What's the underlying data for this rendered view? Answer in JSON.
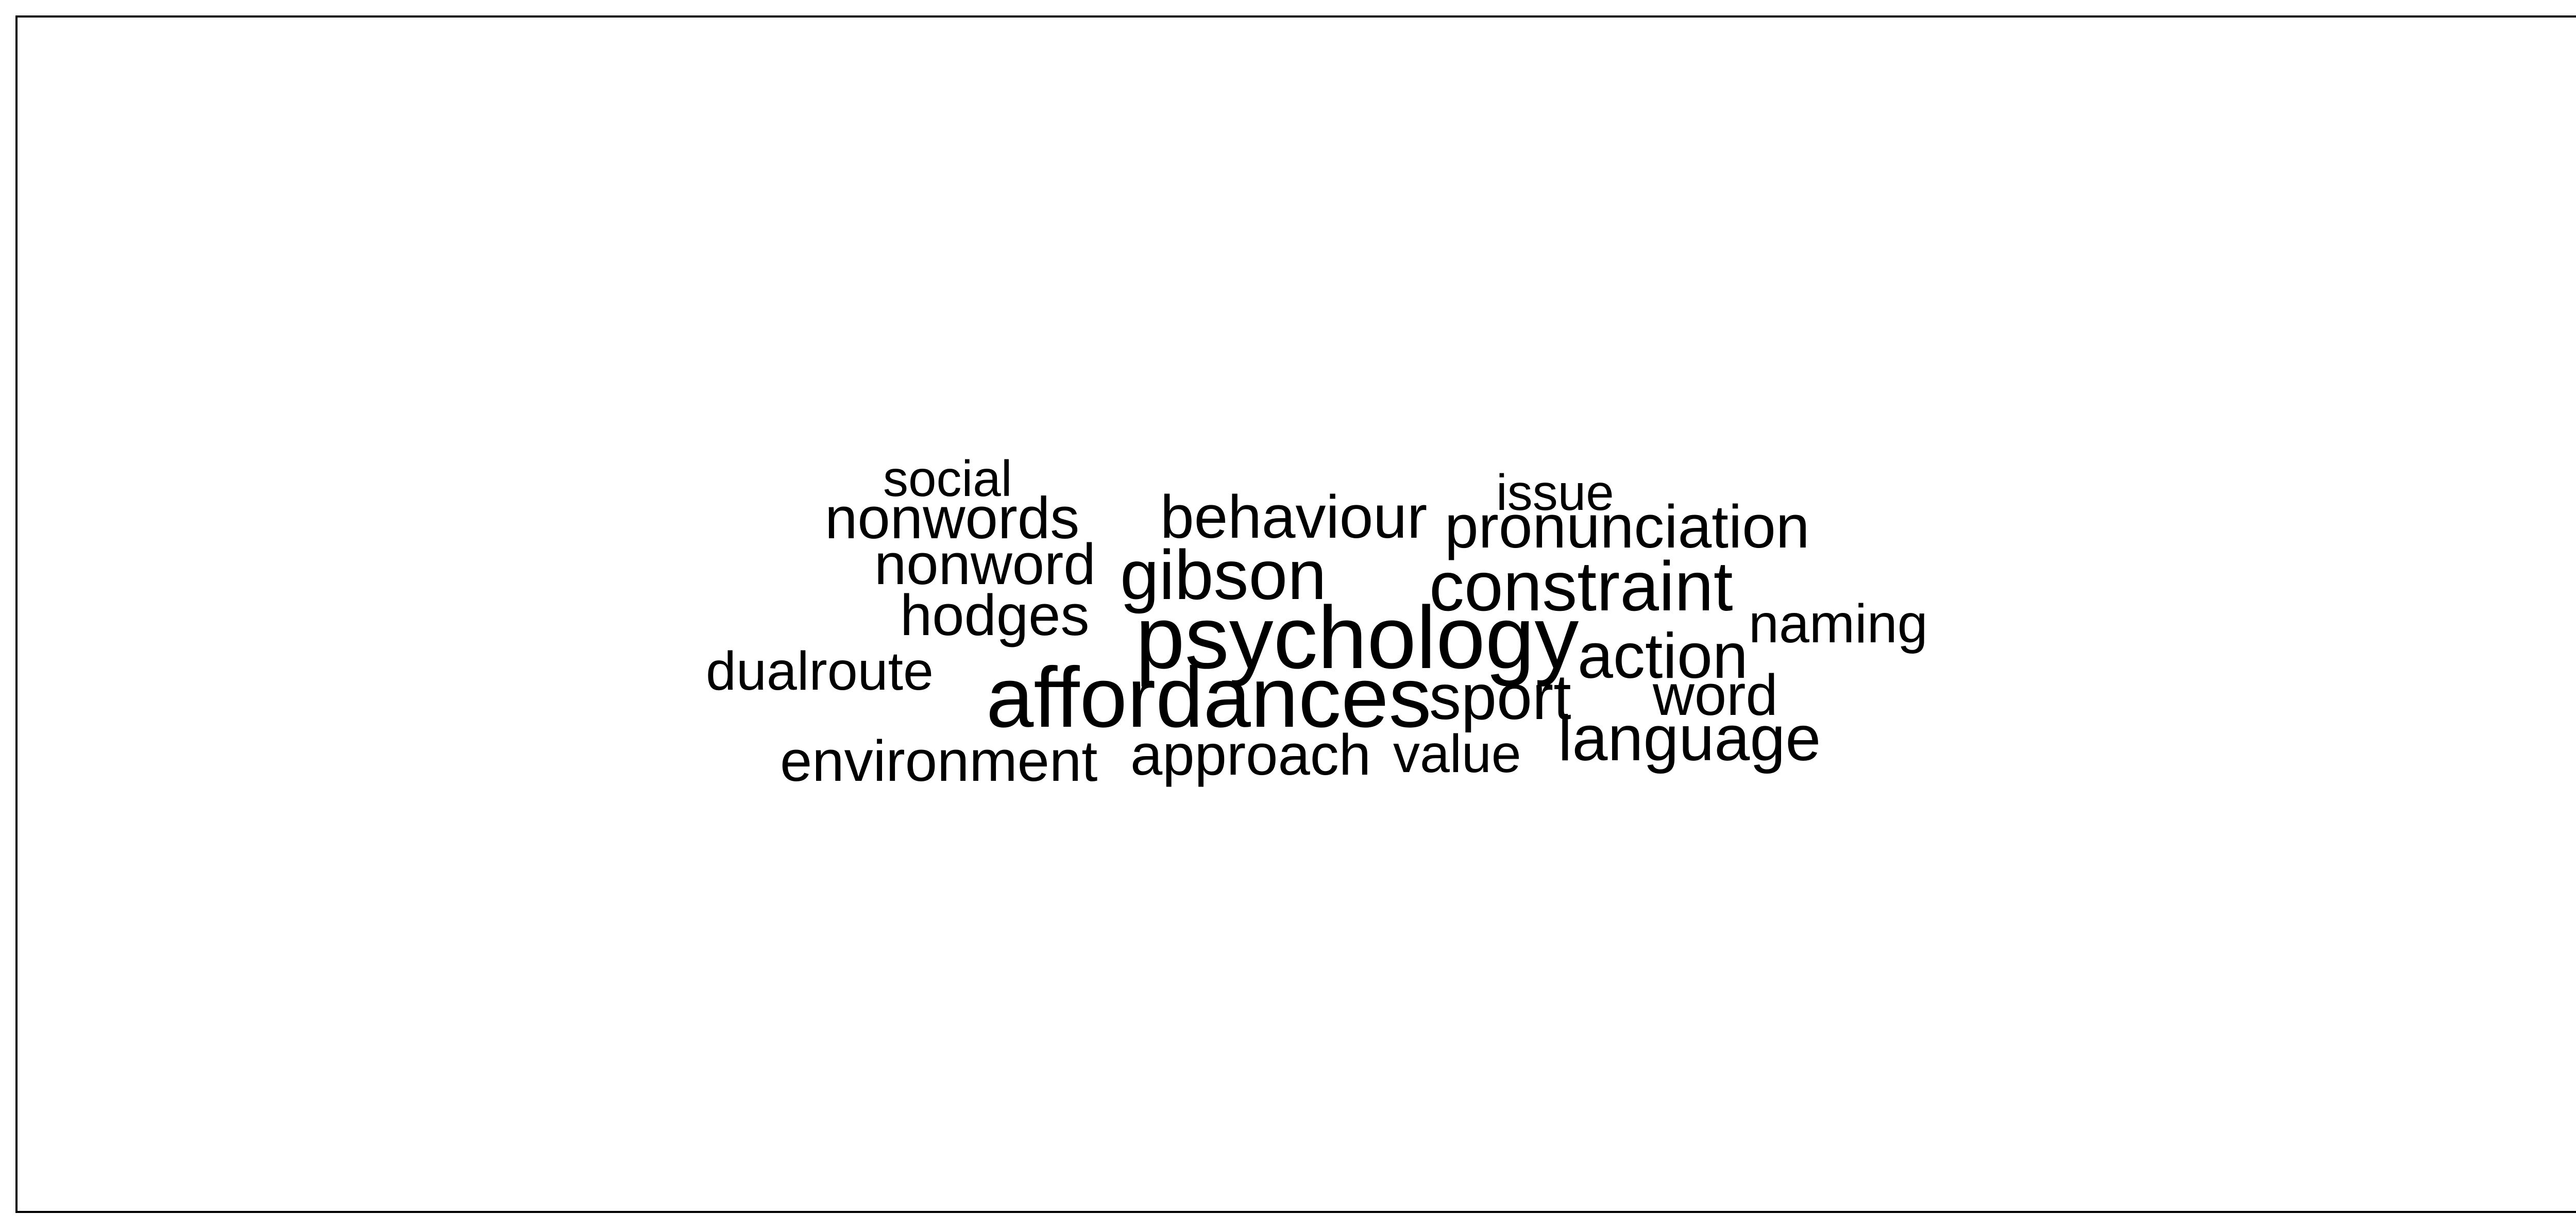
{
  "wordcloud": {
    "text_color": "#000000",
    "words": [
      {
        "text": "social",
        "weight": 2
      },
      {
        "text": "nonwords",
        "weight": 3
      },
      {
        "text": "behaviour",
        "weight": 3
      },
      {
        "text": "issue",
        "weight": 2
      },
      {
        "text": "pronunciation",
        "weight": 3
      },
      {
        "text": "nonword",
        "weight": 3
      },
      {
        "text": "gibson",
        "weight": 4
      },
      {
        "text": "constraint",
        "weight": 4
      },
      {
        "text": "hodges",
        "weight": 3
      },
      {
        "text": "psychology",
        "weight": 5
      },
      {
        "text": "naming",
        "weight": 2
      },
      {
        "text": "dualroute",
        "weight": 2
      },
      {
        "text": "action",
        "weight": 3
      },
      {
        "text": "affordances",
        "weight": 5
      },
      {
        "text": "sport",
        "weight": 3
      },
      {
        "text": "word",
        "weight": 3
      },
      {
        "text": "language",
        "weight": 3
      },
      {
        "text": "environment",
        "weight": 3
      },
      {
        "text": "approach",
        "weight": 3
      },
      {
        "text": "value",
        "weight": 2
      }
    ]
  }
}
